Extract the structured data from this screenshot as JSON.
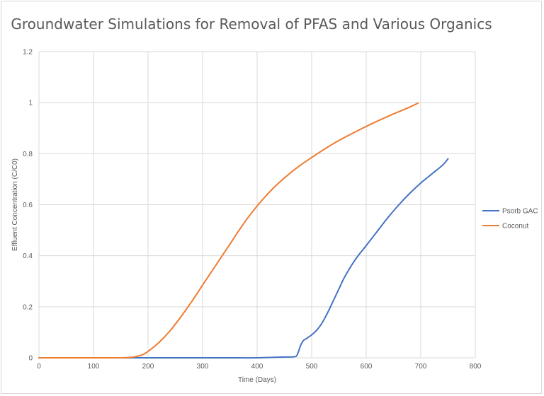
{
  "chart_data": {
    "type": "line",
    "title": "Groundwater Simulations for Removal of PFAS and Various Organics",
    "xlabel": "Time (Days)",
    "ylabel": "Effluent Concentration (C/C0)",
    "xlim": [
      0,
      800
    ],
    "ylim": [
      0,
      1.2
    ],
    "x_ticks": [
      "0",
      "100",
      "200",
      "300",
      "400",
      "500",
      "600",
      "700",
      "800"
    ],
    "y_ticks": [
      "0",
      "0.2",
      "0.4",
      "0.6",
      "0.8",
      "1",
      "1.2"
    ],
    "grid": true,
    "legend_position": "right",
    "series": [
      {
        "name": "Psorb GAC",
        "color": "#4472C4",
        "x": [
          0,
          100,
          200,
          300,
          350,
          400,
          450,
          470,
          475,
          480,
          485,
          490,
          500,
          510,
          520,
          530,
          540,
          550,
          560,
          580,
          600,
          620,
          640,
          660,
          680,
          700,
          720,
          740,
          750
        ],
        "y": [
          0,
          0,
          0,
          0,
          0,
          0,
          0.003,
          0.005,
          0.02,
          0.05,
          0.068,
          0.075,
          0.09,
          0.11,
          0.14,
          0.18,
          0.225,
          0.27,
          0.315,
          0.385,
          0.44,
          0.495,
          0.55,
          0.6,
          0.645,
          0.685,
          0.72,
          0.755,
          0.78
        ]
      },
      {
        "name": "Coconut",
        "color": "#ED7D31",
        "x": [
          0,
          100,
          150,
          170,
          180,
          190,
          200,
          220,
          240,
          260,
          280,
          300,
          325,
          350,
          375,
          400,
          425,
          450,
          475,
          500,
          525,
          550,
          575,
          600,
          625,
          650,
          675,
          695
        ],
        "y": [
          0,
          0,
          0,
          0.002,
          0.006,
          0.012,
          0.025,
          0.06,
          0.105,
          0.16,
          0.22,
          0.285,
          0.365,
          0.445,
          0.525,
          0.595,
          0.655,
          0.705,
          0.748,
          0.785,
          0.82,
          0.852,
          0.88,
          0.907,
          0.932,
          0.956,
          0.978,
          0.998
        ]
      }
    ]
  }
}
